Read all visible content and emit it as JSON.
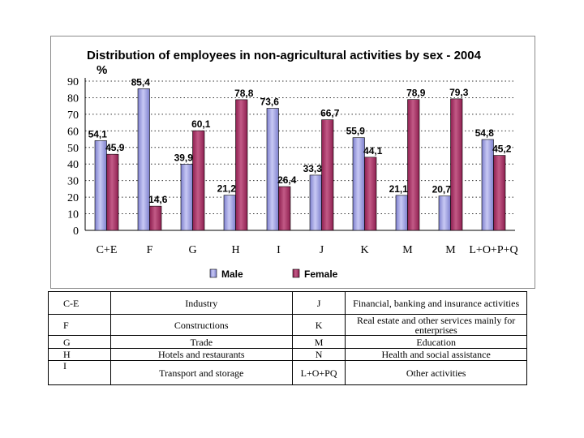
{
  "chart_data": {
    "type": "bar",
    "title": "Distribution of employees in non-agricultural activities by sex - 2004",
    "ylabel": "%",
    "xlabel": "",
    "ylim": [
      0,
      90
    ],
    "yticks": [
      0,
      10,
      20,
      30,
      40,
      50,
      60,
      70,
      80,
      90
    ],
    "grid": true,
    "legend_position": "bottom",
    "categories": [
      "C+E",
      "F",
      "G",
      "H",
      "I",
      "J",
      "K",
      "M",
      "M",
      "L+O+P+Q"
    ],
    "series": [
      {
        "name": "Male",
        "color": "#7e80ce",
        "values": [
          54.1,
          85.4,
          39.9,
          21.2,
          73.6,
          33.3,
          55.9,
          21.1,
          20.7,
          54.8
        ],
        "labels": [
          "54,1",
          "85,4",
          "39,9",
          "21,2",
          "73,6",
          "33,3",
          "55,9",
          "21,1",
          "20,7",
          "54,8"
        ]
      },
      {
        "name": "Female",
        "color": "#8e1f50",
        "values": [
          45.9,
          14.6,
          60.1,
          78.8,
          26.4,
          66.7,
          44.1,
          78.9,
          79.3,
          45.2
        ],
        "labels": [
          "45,9",
          "14,6",
          "60,1",
          "78,8",
          "26,4",
          "66,7",
          "44,1",
          "78,9",
          "79,3",
          "45,2"
        ]
      }
    ]
  },
  "legend_table": [
    {
      "code1": "C-E",
      "desc1": "Industry",
      "code2": "J",
      "desc2": "Financial, banking and insurance activities"
    },
    {
      "code1": "F",
      "desc1": "Constructions",
      "code2": "K",
      "desc2": "Real estate and other services mainly for enterprises"
    },
    {
      "code1": "G",
      "desc1": "Trade",
      "code2": "M",
      "desc2": "Education"
    },
    {
      "code1": "H",
      "desc1": "Hotels and restaurants",
      "code2": "N",
      "desc2": "Health and social assistance"
    },
    {
      "code1": "I",
      "desc1": "Transport and storage",
      "code2": "L+O+PQ",
      "desc2": "Other activities"
    }
  ]
}
